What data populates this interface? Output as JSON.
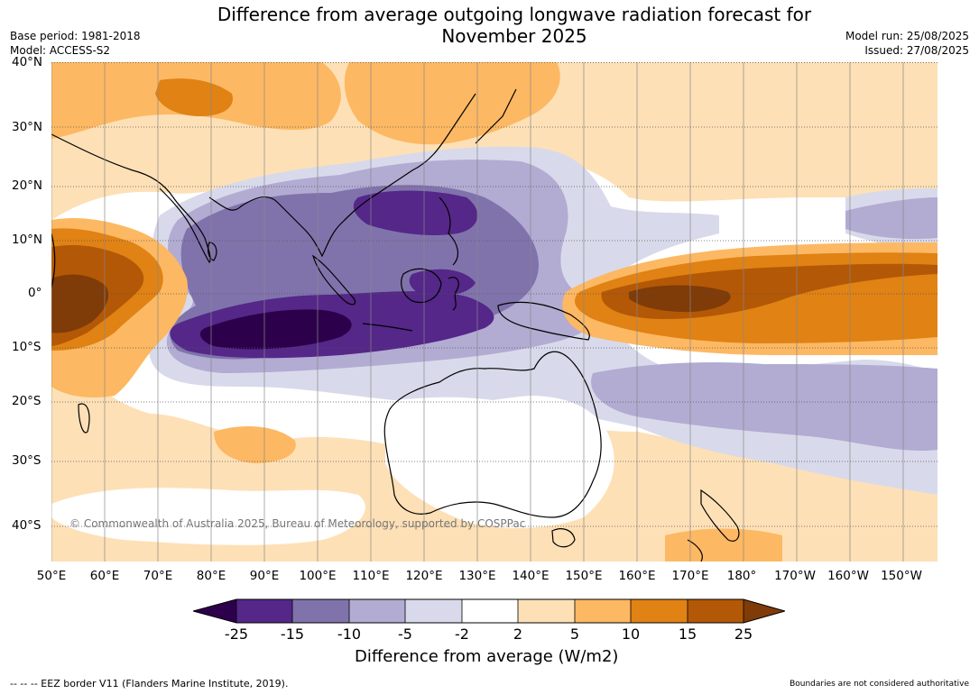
{
  "header": {
    "title_line1": "Difference from average outgoing longwave radiation forecast for",
    "title_line2": "November 2025",
    "base_period": "Base period: 1981-2018",
    "model": "Model: ACCESS-S2",
    "model_run": "Model run: 25/08/2025",
    "issued": "Issued: 27/08/2025"
  },
  "map": {
    "lat_labels": [
      "40°N",
      "30°N",
      "20°N",
      "10°N",
      "0°",
      "10°S",
      "20°S",
      "30°S",
      "40°S"
    ],
    "lon_labels": [
      "50°E",
      "60°E",
      "70°E",
      "80°E",
      "90°E",
      "100°E",
      "110°E",
      "120°E",
      "130°E",
      "140°E",
      "150°E",
      "160°E",
      "170°E",
      "180°",
      "170°W",
      "160°W",
      "150°W"
    ],
    "copyright": "© Commonwealth of Australia 2025, Bureau of Meteorology, supported by COSPPac"
  },
  "legend": {
    "ticks": [
      "-25",
      "-15",
      "-10",
      "-5",
      "-2",
      "2",
      "5",
      "10",
      "15",
      "25"
    ],
    "colors": [
      "#2d004b",
      "#542788",
      "#8073ac",
      "#b2abd2",
      "#d8daeb",
      "#ffffff",
      "#fee0b6",
      "#fdb863",
      "#e08214",
      "#b35806",
      "#7f3b08"
    ],
    "label": "Difference from average (W/m2)"
  },
  "footer": {
    "eez_note": "--  --  -- EEZ border V11 (Flanders Marine Institute, 2019).",
    "disclaimer": "Boundaries are not considered authoritative"
  }
}
